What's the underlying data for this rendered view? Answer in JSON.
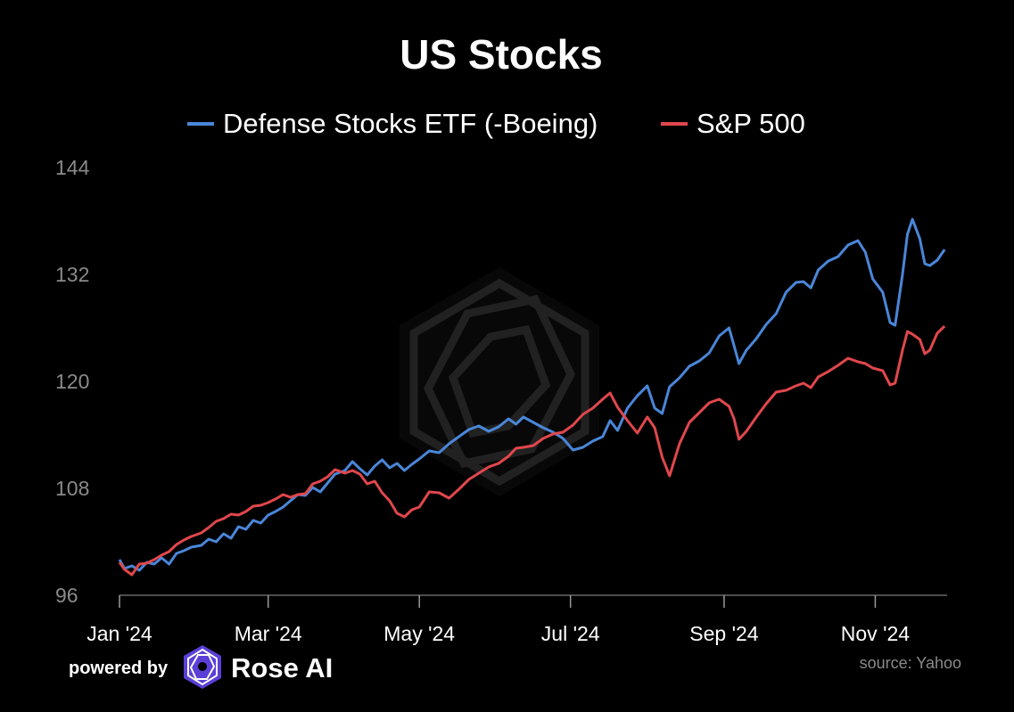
{
  "colors": {
    "background": "#000000",
    "defense": "#4a86d8",
    "sp500": "#e0474c",
    "axis": "#9a9a9a",
    "tick_label": "#8a8a8a"
  },
  "footer": {
    "powered_by": "powered by",
    "brand": "Rose AI",
    "source": "source: Yahoo",
    "logo_icon": "rose-ai-logo-icon"
  },
  "chart_data": {
    "type": "line",
    "title": "US Stocks",
    "xlabel": "",
    "ylabel": "",
    "ylim": [
      96,
      144
    ],
    "yticks": [
      96,
      108,
      120,
      132,
      144
    ],
    "xlim": [
      "2024-01-01",
      "2024-11-30"
    ],
    "xticks": [
      {
        "date": "2024-01-01",
        "label": "Jan '24"
      },
      {
        "date": "2024-03-01",
        "label": "Mar '24"
      },
      {
        "date": "2024-05-01",
        "label": "May '24"
      },
      {
        "date": "2024-07-01",
        "label": "Jul '24"
      },
      {
        "date": "2024-09-01",
        "label": "Sep '24"
      },
      {
        "date": "2024-11-01",
        "label": "Nov '24"
      }
    ],
    "grid": false,
    "legend_position": "top-center",
    "series": [
      {
        "name": "Defense Stocks ETF (-Boeing)",
        "color": "#4a86d8",
        "points": [
          [
            "2024-01-01",
            100.0
          ],
          [
            "2024-01-03",
            99.0
          ],
          [
            "2024-01-06",
            99.3
          ],
          [
            "2024-01-09",
            98.8
          ],
          [
            "2024-01-12",
            99.7
          ],
          [
            "2024-01-15",
            99.5
          ],
          [
            "2024-01-18",
            100.2
          ],
          [
            "2024-01-21",
            99.5
          ],
          [
            "2024-01-24",
            100.7
          ],
          [
            "2024-01-27",
            101.0
          ],
          [
            "2024-01-30",
            101.4
          ],
          [
            "2024-02-03",
            101.6
          ],
          [
            "2024-02-06",
            102.3
          ],
          [
            "2024-02-09",
            102.0
          ],
          [
            "2024-02-12",
            102.9
          ],
          [
            "2024-02-15",
            102.4
          ],
          [
            "2024-02-18",
            103.7
          ],
          [
            "2024-02-21",
            103.4
          ],
          [
            "2024-02-24",
            104.4
          ],
          [
            "2024-02-27",
            104.1
          ],
          [
            "2024-03-01",
            105.0
          ],
          [
            "2024-03-04",
            105.4
          ],
          [
            "2024-03-07",
            105.9
          ],
          [
            "2024-03-10",
            106.6
          ],
          [
            "2024-03-13",
            107.3
          ],
          [
            "2024-03-16",
            107.2
          ],
          [
            "2024-03-19",
            108.1
          ],
          [
            "2024-03-22",
            107.6
          ],
          [
            "2024-03-25",
            108.6
          ],
          [
            "2024-03-28",
            109.6
          ],
          [
            "2024-04-01",
            110.0
          ],
          [
            "2024-04-04",
            111.0
          ],
          [
            "2024-04-07",
            110.2
          ],
          [
            "2024-04-10",
            109.5
          ],
          [
            "2024-04-13",
            110.5
          ],
          [
            "2024-04-16",
            111.2
          ],
          [
            "2024-04-19",
            110.3
          ],
          [
            "2024-04-22",
            110.8
          ],
          [
            "2024-04-25",
            110.0
          ],
          [
            "2024-04-28",
            110.7
          ],
          [
            "2024-05-01",
            111.3
          ],
          [
            "2024-05-05",
            112.2
          ],
          [
            "2024-05-09",
            112.0
          ],
          [
            "2024-05-13",
            113.0
          ],
          [
            "2024-05-17",
            113.8
          ],
          [
            "2024-05-21",
            114.6
          ],
          [
            "2024-05-25",
            115.0
          ],
          [
            "2024-05-29",
            114.4
          ],
          [
            "2024-06-02",
            114.9
          ],
          [
            "2024-06-06",
            115.8
          ],
          [
            "2024-06-09",
            115.2
          ],
          [
            "2024-06-12",
            116.0
          ],
          [
            "2024-06-16",
            115.4
          ],
          [
            "2024-06-20",
            114.8
          ],
          [
            "2024-06-24",
            114.3
          ],
          [
            "2024-06-28",
            113.6
          ],
          [
            "2024-07-02",
            112.3
          ],
          [
            "2024-07-06",
            112.6
          ],
          [
            "2024-07-10",
            113.3
          ],
          [
            "2024-07-14",
            113.8
          ],
          [
            "2024-07-17",
            115.6
          ],
          [
            "2024-07-20",
            114.5
          ],
          [
            "2024-07-24",
            117.0
          ],
          [
            "2024-07-28",
            118.4
          ],
          [
            "2024-08-01",
            119.5
          ],
          [
            "2024-08-04",
            117.0
          ],
          [
            "2024-08-07",
            116.4
          ],
          [
            "2024-08-10",
            119.4
          ],
          [
            "2024-08-14",
            120.4
          ],
          [
            "2024-08-18",
            121.7
          ],
          [
            "2024-08-22",
            122.3
          ],
          [
            "2024-08-26",
            123.2
          ],
          [
            "2024-08-30",
            125.1
          ],
          [
            "2024-09-03",
            126.0
          ],
          [
            "2024-09-05",
            124.0
          ],
          [
            "2024-09-07",
            122.0
          ],
          [
            "2024-09-10",
            123.5
          ],
          [
            "2024-09-14",
            124.8
          ],
          [
            "2024-09-18",
            126.4
          ],
          [
            "2024-09-22",
            127.6
          ],
          [
            "2024-09-26",
            130.0
          ],
          [
            "2024-09-30",
            131.1
          ],
          [
            "2024-10-03",
            131.2
          ],
          [
            "2024-10-06",
            130.5
          ],
          [
            "2024-10-09",
            132.5
          ],
          [
            "2024-10-13",
            133.5
          ],
          [
            "2024-10-17",
            134.0
          ],
          [
            "2024-10-21",
            135.3
          ],
          [
            "2024-10-25",
            135.8
          ],
          [
            "2024-10-28",
            134.5
          ],
          [
            "2024-10-31",
            131.5
          ],
          [
            "2024-11-04",
            130.0
          ],
          [
            "2024-11-07",
            126.6
          ],
          [
            "2024-11-09",
            126.3
          ],
          [
            "2024-11-12",
            132.0
          ],
          [
            "2024-11-14",
            136.5
          ],
          [
            "2024-11-16",
            138.2
          ],
          [
            "2024-11-19",
            136.0
          ],
          [
            "2024-11-21",
            133.2
          ],
          [
            "2024-11-23",
            133.0
          ],
          [
            "2024-11-26",
            133.6
          ],
          [
            "2024-11-29",
            134.8
          ]
        ]
      },
      {
        "name": "S&P 500",
        "color": "#e0474c",
        "points": [
          [
            "2024-01-01",
            99.7
          ],
          [
            "2024-01-03",
            98.9
          ],
          [
            "2024-01-06",
            98.3
          ],
          [
            "2024-01-09",
            99.5
          ],
          [
            "2024-01-12",
            99.6
          ],
          [
            "2024-01-15",
            100.0
          ],
          [
            "2024-01-18",
            100.5
          ],
          [
            "2024-01-21",
            100.9
          ],
          [
            "2024-01-24",
            101.7
          ],
          [
            "2024-01-27",
            102.2
          ],
          [
            "2024-01-30",
            102.6
          ],
          [
            "2024-02-03",
            103.0
          ],
          [
            "2024-02-06",
            103.6
          ],
          [
            "2024-02-09",
            104.3
          ],
          [
            "2024-02-12",
            104.6
          ],
          [
            "2024-02-15",
            105.1
          ],
          [
            "2024-02-18",
            105.0
          ],
          [
            "2024-02-21",
            105.4
          ],
          [
            "2024-02-24",
            106.0
          ],
          [
            "2024-02-27",
            106.1
          ],
          [
            "2024-03-01",
            106.4
          ],
          [
            "2024-03-04",
            106.8
          ],
          [
            "2024-03-07",
            107.3
          ],
          [
            "2024-03-10",
            107.0
          ],
          [
            "2024-03-13",
            107.3
          ],
          [
            "2024-03-16",
            107.4
          ],
          [
            "2024-03-19",
            108.5
          ],
          [
            "2024-03-22",
            108.8
          ],
          [
            "2024-03-25",
            109.3
          ],
          [
            "2024-03-28",
            110.1
          ],
          [
            "2024-04-01",
            109.7
          ],
          [
            "2024-04-04",
            110.0
          ],
          [
            "2024-04-07",
            109.6
          ],
          [
            "2024-04-10",
            108.5
          ],
          [
            "2024-04-13",
            108.8
          ],
          [
            "2024-04-16",
            107.5
          ],
          [
            "2024-04-19",
            106.6
          ],
          [
            "2024-04-22",
            105.2
          ],
          [
            "2024-04-25",
            104.8
          ],
          [
            "2024-04-28",
            105.6
          ],
          [
            "2024-05-01",
            105.9
          ],
          [
            "2024-05-05",
            107.6
          ],
          [
            "2024-05-09",
            107.5
          ],
          [
            "2024-05-13",
            106.9
          ],
          [
            "2024-05-17",
            107.9
          ],
          [
            "2024-05-21",
            109.0
          ],
          [
            "2024-05-25",
            109.7
          ],
          [
            "2024-05-29",
            110.4
          ],
          [
            "2024-06-02",
            110.8
          ],
          [
            "2024-06-06",
            111.6
          ],
          [
            "2024-06-09",
            112.5
          ],
          [
            "2024-06-12",
            112.6
          ],
          [
            "2024-06-16",
            112.8
          ],
          [
            "2024-06-20",
            113.6
          ],
          [
            "2024-06-24",
            114.1
          ],
          [
            "2024-06-28",
            114.3
          ],
          [
            "2024-07-02",
            115.1
          ],
          [
            "2024-07-06",
            116.3
          ],
          [
            "2024-07-10",
            117.0
          ],
          [
            "2024-07-14",
            118.0
          ],
          [
            "2024-07-17",
            118.7
          ],
          [
            "2024-07-20",
            117.1
          ],
          [
            "2024-07-24",
            115.6
          ],
          [
            "2024-07-28",
            114.2
          ],
          [
            "2024-08-01",
            116.0
          ],
          [
            "2024-08-04",
            114.8
          ],
          [
            "2024-08-07",
            111.5
          ],
          [
            "2024-08-10",
            109.4
          ],
          [
            "2024-08-14",
            113.0
          ],
          [
            "2024-08-18",
            115.4
          ],
          [
            "2024-08-22",
            116.5
          ],
          [
            "2024-08-26",
            117.6
          ],
          [
            "2024-08-30",
            118.0
          ],
          [
            "2024-09-03",
            117.2
          ],
          [
            "2024-09-05",
            115.8
          ],
          [
            "2024-09-07",
            113.5
          ],
          [
            "2024-09-10",
            114.4
          ],
          [
            "2024-09-14",
            116.0
          ],
          [
            "2024-09-18",
            117.5
          ],
          [
            "2024-09-22",
            118.8
          ],
          [
            "2024-09-26",
            119.0
          ],
          [
            "2024-09-30",
            119.5
          ],
          [
            "2024-10-03",
            119.8
          ],
          [
            "2024-10-06",
            119.3
          ],
          [
            "2024-10-09",
            120.5
          ],
          [
            "2024-10-13",
            121.1
          ],
          [
            "2024-10-17",
            121.8
          ],
          [
            "2024-10-21",
            122.6
          ],
          [
            "2024-10-25",
            122.2
          ],
          [
            "2024-10-28",
            122.0
          ],
          [
            "2024-10-31",
            121.5
          ],
          [
            "2024-11-04",
            121.2
          ],
          [
            "2024-11-07",
            119.6
          ],
          [
            "2024-11-09",
            119.8
          ],
          [
            "2024-11-12",
            123.5
          ],
          [
            "2024-11-14",
            125.6
          ],
          [
            "2024-11-16",
            125.3
          ],
          [
            "2024-11-19",
            124.7
          ],
          [
            "2024-11-21",
            123.1
          ],
          [
            "2024-11-23",
            123.5
          ],
          [
            "2024-11-26",
            125.4
          ],
          [
            "2024-11-29",
            126.2
          ]
        ]
      }
    ]
  }
}
